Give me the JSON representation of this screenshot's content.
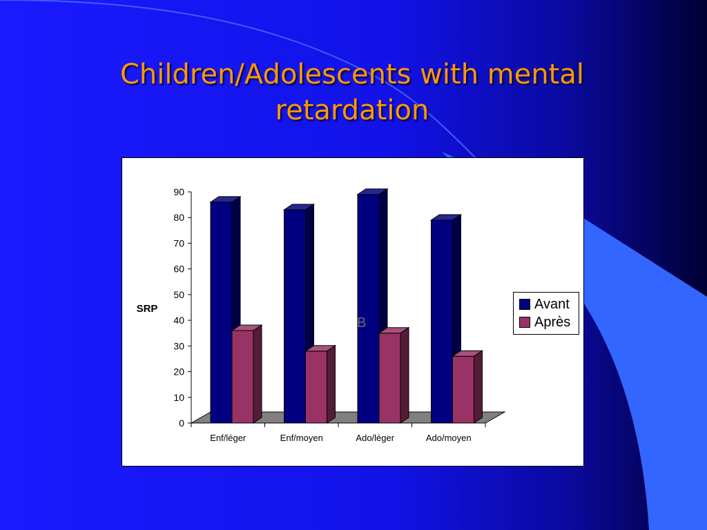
{
  "slide": {
    "title": "Children/Adolescents with mental retardation"
  },
  "stray_text": "B",
  "chart_data": {
    "type": "bar",
    "title": "",
    "xlabel": "",
    "ylabel": "SRP",
    "categories": [
      "Enf/léger",
      "Enf/moyen",
      "Ado/léger",
      "Ado/moyen"
    ],
    "series": [
      {
        "name": "Avant",
        "values": [
          86,
          83,
          89,
          79
        ],
        "color": "#000080"
      },
      {
        "name": "Après",
        "values": [
          36,
          28,
          35,
          26
        ],
        "color": "#993366"
      }
    ],
    "ylim": [
      0,
      90
    ],
    "yticks": [
      0,
      10,
      20,
      30,
      40,
      50,
      60,
      70,
      80,
      90
    ],
    "three_d": true,
    "grid": false,
    "legend_position": "right"
  },
  "colors": {
    "title": "#ff9900",
    "background": "#1a1aff",
    "accent_light": "#3366ff",
    "floor": "#808080"
  }
}
